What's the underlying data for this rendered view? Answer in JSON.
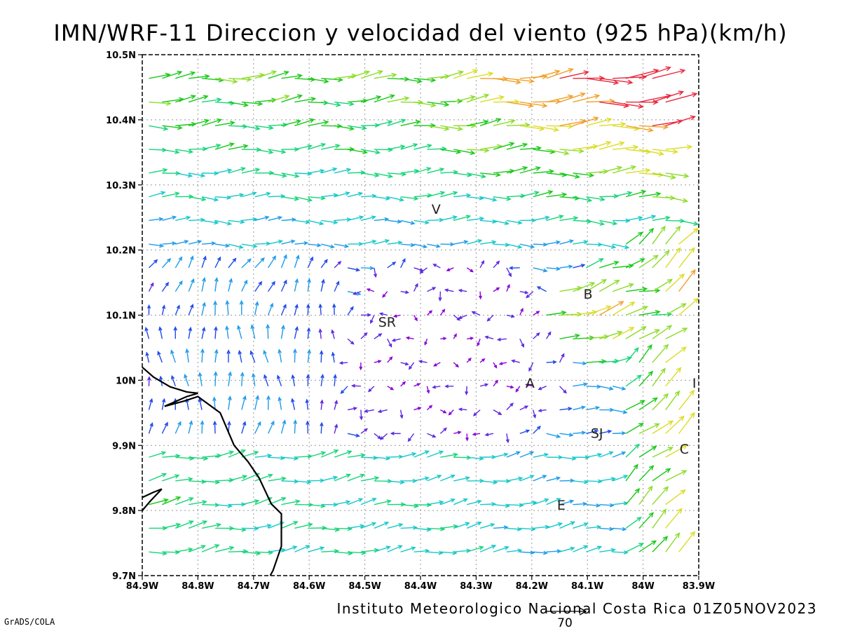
{
  "title": "IMN/WRF-11 Direccion y velocidad del viento (925 hPa)(km/h)",
  "footer": "Instituto Meteorologico Nacional Costa Rica 01Z05NOV2023",
  "software": "GrADS/COLA",
  "reference_vector": {
    "label": "70",
    "speed_kmh": 70
  },
  "map": {
    "lon_range": [
      -84.9,
      -83.9
    ],
    "lat_range": [
      9.7,
      10.5
    ],
    "y_ticks": [
      {
        "value": 10.5,
        "label": "10.5N"
      },
      {
        "value": 10.4,
        "label": "10.4N"
      },
      {
        "value": 10.3,
        "label": "10.3N"
      },
      {
        "value": 10.2,
        "label": "10.2N"
      },
      {
        "value": 10.1,
        "label": "10.1N"
      },
      {
        "value": 10.0,
        "label": "10N"
      },
      {
        "value": 9.9,
        "label": "9.9N"
      },
      {
        "value": 9.8,
        "label": "9.8N"
      },
      {
        "value": 9.7,
        "label": "9.7N"
      }
    ],
    "x_ticks": [
      {
        "value": -84.9,
        "label": "84.9W"
      },
      {
        "value": -84.8,
        "label": "84.8W"
      },
      {
        "value": -84.7,
        "label": "84.7W"
      },
      {
        "value": -84.6,
        "label": "84.6W"
      },
      {
        "value": -84.5,
        "label": "84.5W"
      },
      {
        "value": -84.4,
        "label": "84.4W"
      },
      {
        "value": -84.3,
        "label": "84.3W"
      },
      {
        "value": -84.2,
        "label": "84.2W"
      },
      {
        "value": -84.1,
        "label": "84.1W"
      },
      {
        "value": -84.0,
        "label": "84W"
      },
      {
        "value": -83.9,
        "label": "83.9W"
      }
    ],
    "gridlines": "dotted",
    "cities": [
      {
        "label": "V",
        "lon": -84.372,
        "lat": 10.263
      },
      {
        "label": "B",
        "lon": -84.099,
        "lat": 10.133
      },
      {
        "label": "SR",
        "lon": -84.46,
        "lat": 10.09
      },
      {
        "label": "A",
        "lon": -84.203,
        "lat": 9.996
      },
      {
        "label": "I",
        "lon": -83.908,
        "lat": 9.996
      },
      {
        "label": "SJ",
        "lon": -84.083,
        "lat": 9.919
      },
      {
        "label": "C",
        "lon": -83.926,
        "lat": 9.895
      },
      {
        "label": "E",
        "lon": -84.147,
        "lat": 9.809
      }
    ],
    "coastline": [
      [
        -84.9,
        10.02
      ],
      [
        -84.88,
        10.005
      ],
      [
        -84.85,
        9.99
      ],
      [
        -84.82,
        9.982
      ],
      [
        -84.8,
        9.98
      ],
      [
        -84.82,
        9.975
      ],
      [
        -84.86,
        9.96
      ],
      [
        -84.825,
        9.968
      ],
      [
        -84.8,
        9.975
      ],
      [
        -84.76,
        9.95
      ],
      [
        -84.735,
        9.9
      ],
      [
        -84.71,
        9.875
      ],
      [
        -84.69,
        9.85
      ],
      [
        -84.668,
        9.81
      ],
      [
        -84.65,
        9.795
      ],
      [
        -84.65,
        9.745
      ],
      [
        -84.665,
        9.708
      ],
      [
        -84.67,
        9.7
      ]
    ],
    "coastline_peninsula": [
      [
        -84.9,
        9.82
      ],
      [
        -84.88,
        9.828
      ],
      [
        -84.865,
        9.833
      ],
      [
        -84.885,
        9.815
      ],
      [
        -84.9,
        9.8
      ]
    ]
  },
  "wind_field": {
    "units": "km/h",
    "rows": 21,
    "cols": 42,
    "color_scale": [
      {
        "max": 10,
        "color": "#8a00d6"
      },
      {
        "max": 17,
        "color": "#5c28e0"
      },
      {
        "max": 25,
        "color": "#1f49e8"
      },
      {
        "max": 32,
        "color": "#1e9be8"
      },
      {
        "max": 40,
        "color": "#18c8c8"
      },
      {
        "max": 48,
        "color": "#18d47a"
      },
      {
        "max": 55,
        "color": "#18c818"
      },
      {
        "max": 62,
        "color": "#8cdc28"
      },
      {
        "max": 70,
        "color": "#dcdc28"
      },
      {
        "max": 78,
        "color": "#f0a028"
      },
      {
        "max": 999,
        "color": "#e8283c"
      }
    ]
  }
}
